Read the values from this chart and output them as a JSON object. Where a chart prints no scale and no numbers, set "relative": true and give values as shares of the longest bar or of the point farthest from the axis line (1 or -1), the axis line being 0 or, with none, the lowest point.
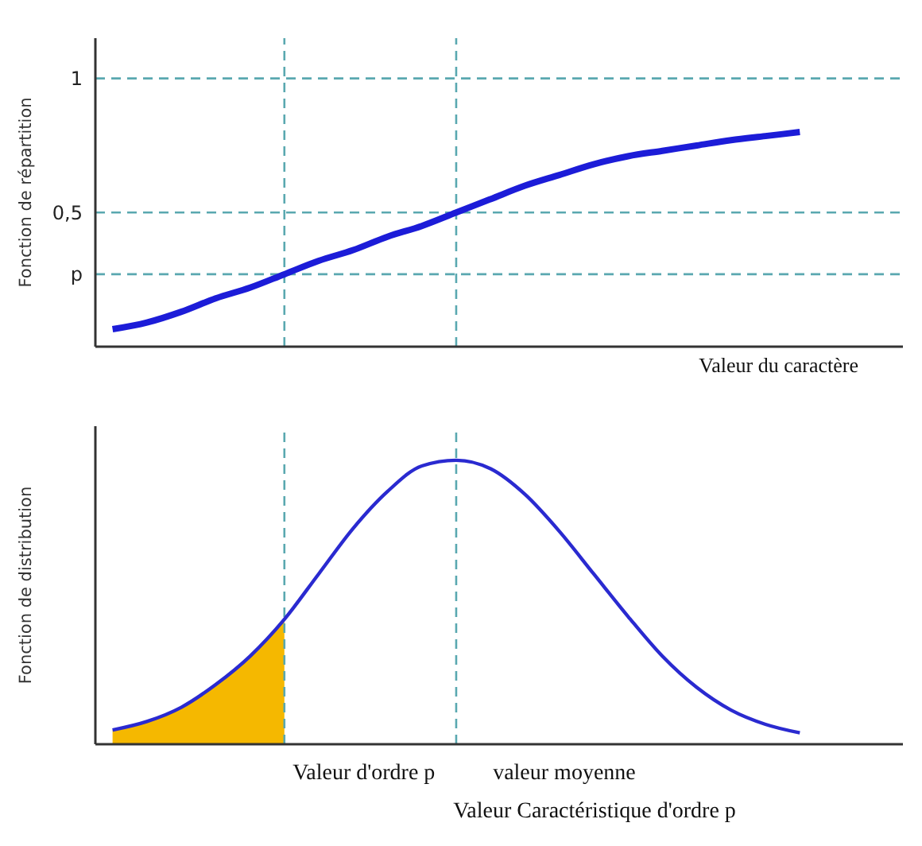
{
  "chart_data": [
    {
      "type": "line",
      "ylabel": "Fonction de répartition",
      "xlabel": "Valeur du caractère",
      "categories": [
        null,
        null,
        null,
        null,
        null,
        null,
        null,
        null,
        null,
        null,
        null,
        null,
        null,
        null,
        null,
        null,
        null,
        null,
        null,
        null,
        null
      ],
      "series": [
        {
          "color": "#1c1cd8",
          "values": [
            0.065,
            0.09,
            0.13,
            0.18,
            0.22,
            0.27,
            0.32,
            0.36,
            0.41,
            0.45,
            0.5,
            0.55,
            0.6,
            0.64,
            0.68,
            0.71,
            0.73,
            0.75,
            0.77,
            0.785,
            0.8
          ]
        }
      ],
      "ylim": [
        0,
        1.15
      ],
      "yticks": [
        {
          "value": 0.27,
          "label": "p"
        },
        {
          "value": 0.5,
          "label": "0,5"
        },
        1
      ],
      "tick_labels": "y",
      "ref_lines": [
        {
          "axis": "y",
          "value": 1,
          "color": "#5aa8b0",
          "line_style": "dashed"
        },
        {
          "axis": "y",
          "value": 0.5,
          "color": "#5aa8b0",
          "line_style": "dashed"
        },
        {
          "axis": "y",
          "value": 0.27,
          "color": "#5aa8b0",
          "line_style": "dashed"
        }
      ]
    },
    {
      "type": "line",
      "ylabel": "Fonction de distribution",
      "xlabel": "Valeur Caractéristique d'ordre p",
      "relative": true,
      "tick_labels": false,
      "categories": [
        null,
        null,
        null,
        null,
        null,
        null,
        null,
        null,
        null,
        null,
        null,
        null,
        null,
        null,
        null,
        null,
        null,
        null,
        null,
        null,
        null
      ],
      "series": [
        {
          "type": "area",
          "color": "#f5b800",
          "values": [
            0.05,
            0.08,
            0.13,
            0.21,
            0.31,
            0.44,
            null,
            null,
            null,
            null,
            null,
            null,
            null,
            null,
            null,
            null,
            null,
            null,
            null,
            null,
            null
          ]
        },
        {
          "color": "#2a2ad0",
          "values": [
            0.05,
            0.08,
            0.13,
            0.21,
            0.31,
            0.44,
            0.6,
            0.76,
            0.89,
            0.98,
            1,
            0.97,
            0.88,
            0.75,
            0.6,
            0.45,
            0.31,
            0.2,
            0.12,
            0.07,
            0.04
          ]
        }
      ],
      "annotations": [
        "Valeur d'ordre p",
        "valeur moyenne"
      ]
    }
  ]
}
